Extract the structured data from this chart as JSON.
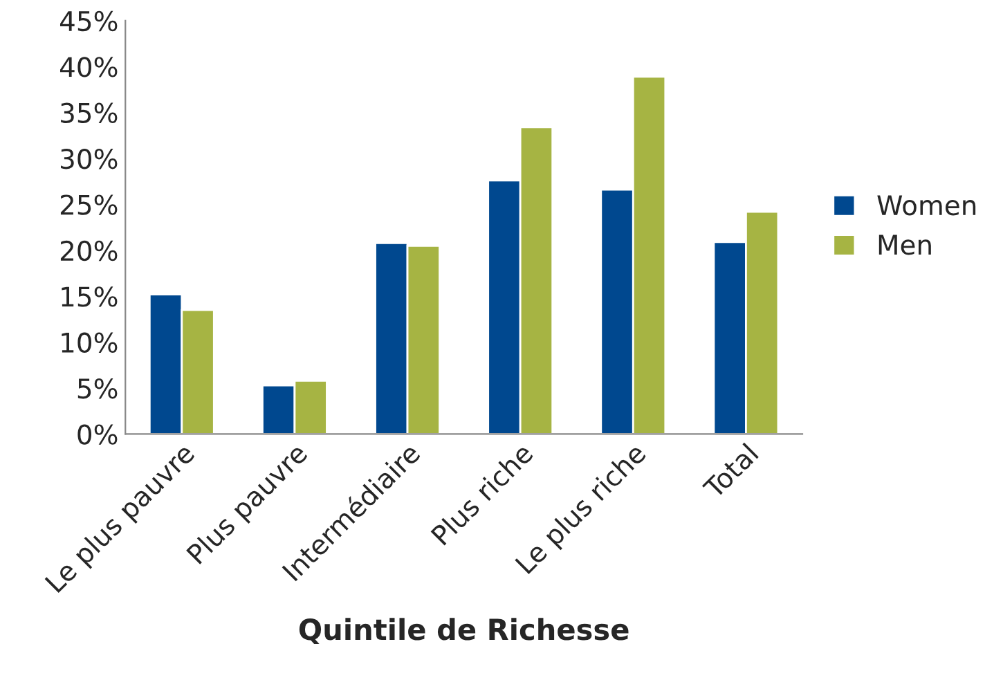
{
  "chart_data": {
    "type": "bar",
    "xlabel": "Quintile de Richesse",
    "categories": [
      "Le plus pauvre",
      "Plus pauvre",
      "Intermédiaire",
      "Plus riche",
      "Le plus riche",
      "Total"
    ],
    "series": [
      {
        "name": "Women",
        "color": "#00488f",
        "values": [
          15.2,
          5.3,
          20.8,
          27.6,
          26.6,
          20.9
        ]
      },
      {
        "name": "Men",
        "color": "#a6b443",
        "values": [
          13.5,
          5.8,
          20.5,
          33.4,
          38.9,
          24.2
        ]
      }
    ],
    "ylim": [
      0,
      45
    ],
    "yticks": [
      {
        "value": 0,
        "label": "0%"
      },
      {
        "value": 5,
        "label": "5%"
      },
      {
        "value": 10,
        "label": "10%"
      },
      {
        "value": 15,
        "label": "15%"
      },
      {
        "value": 20,
        "label": "20%"
      },
      {
        "value": 25,
        "label": "25%"
      },
      {
        "value": 30,
        "label": "30%"
      },
      {
        "value": 35,
        "label": "35%"
      },
      {
        "value": 40,
        "label": "40%"
      },
      {
        "value": 45,
        "label": "45%"
      }
    ],
    "grid": false,
    "legend": "right"
  }
}
